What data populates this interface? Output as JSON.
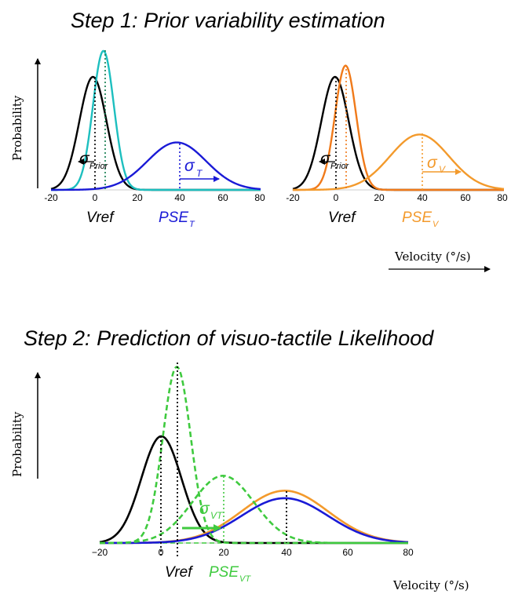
{
  "step1": {
    "title": "Step 1: Prior variability estimation",
    "ylabel": "Probability",
    "xlabel": "Velocity (°/s)",
    "left_panel": {
      "ticks": [
        "-20",
        "0",
        "20",
        "40",
        "60",
        "80"
      ],
      "sigma_prior_symbol": "σ",
      "sigma_prior_sub": "Prior",
      "sigma_t_symbol": "σ",
      "sigma_t_sub": "T",
      "vref_label": "Vref",
      "pse_label": "PSE",
      "pse_sub": "T"
    },
    "right_panel": {
      "ticks": [
        "-20",
        "0",
        "20",
        "40",
        "60",
        "80"
      ],
      "sigma_prior_symbol": "σ",
      "sigma_prior_sub": "Prior",
      "sigma_v_symbol": "σ",
      "sigma_v_sub": "V",
      "vref_label": "Vref",
      "pse_label": "PSE",
      "pse_sub": "V"
    }
  },
  "step2": {
    "title": "Step 2: Prediction of visuo-tactile Likelihood",
    "ylabel": "Probability",
    "xlabel": "Velocity (°/s)",
    "ticks": [
      "−20",
      "0",
      "20",
      "40",
      "60",
      "80"
    ],
    "sigma_vt_symbol": "σ",
    "sigma_vt_sub": "VT",
    "vref_label": "Vref",
    "pse_label": "PSE",
    "pse_sub": "VT"
  },
  "colors": {
    "prior": "#000000",
    "tactile_narrow": "#1dbfbf",
    "tactile": "#1a1ad6",
    "visual": "#f39a2c",
    "visuo_tactile": "#3fca3f"
  },
  "chart_data": [
    {
      "type": "line",
      "panel": "step1-left",
      "xlim": [
        -20,
        80
      ],
      "series": [
        {
          "curve": "prior",
          "mean": 0,
          "sd": 6.5,
          "peak": 1.0
        },
        {
          "curve": "tactile-reference",
          "mean": 5,
          "sd": 5,
          "peak": 1.23
        },
        {
          "curve": "tactile-likelihood",
          "mean": 40,
          "sd": 14,
          "peak": 0.42
        }
      ]
    },
    {
      "type": "line",
      "panel": "step1-right",
      "xlim": [
        -20,
        80
      ],
      "series": [
        {
          "curve": "prior",
          "mean": 0,
          "sd": 6.5,
          "peak": 1.0
        },
        {
          "curve": "visual-reference",
          "mean": 5,
          "sd": 5,
          "peak": 1.1
        },
        {
          "curve": "visual-likelihood",
          "mean": 40,
          "sd": 14,
          "peak": 0.49
        }
      ]
    },
    {
      "type": "line",
      "panel": "step2",
      "xlim": [
        -20,
        80
      ],
      "series": [
        {
          "curve": "prior",
          "mean": 0,
          "sd": 6.5,
          "peak": 1.0
        },
        {
          "curve": "visuo-tactile-reference",
          "mean": 5,
          "sd": 4.5,
          "peak": 1.65
        },
        {
          "curve": "visuo-tactile-likelihood",
          "mean": 20,
          "sd": 10,
          "peak": 0.63
        },
        {
          "curve": "tactile-likelihood",
          "mean": 40,
          "sd": 14,
          "peak": 0.42
        },
        {
          "curve": "visual-likelihood",
          "mean": 40,
          "sd": 14,
          "peak": 0.49
        }
      ]
    }
  ]
}
